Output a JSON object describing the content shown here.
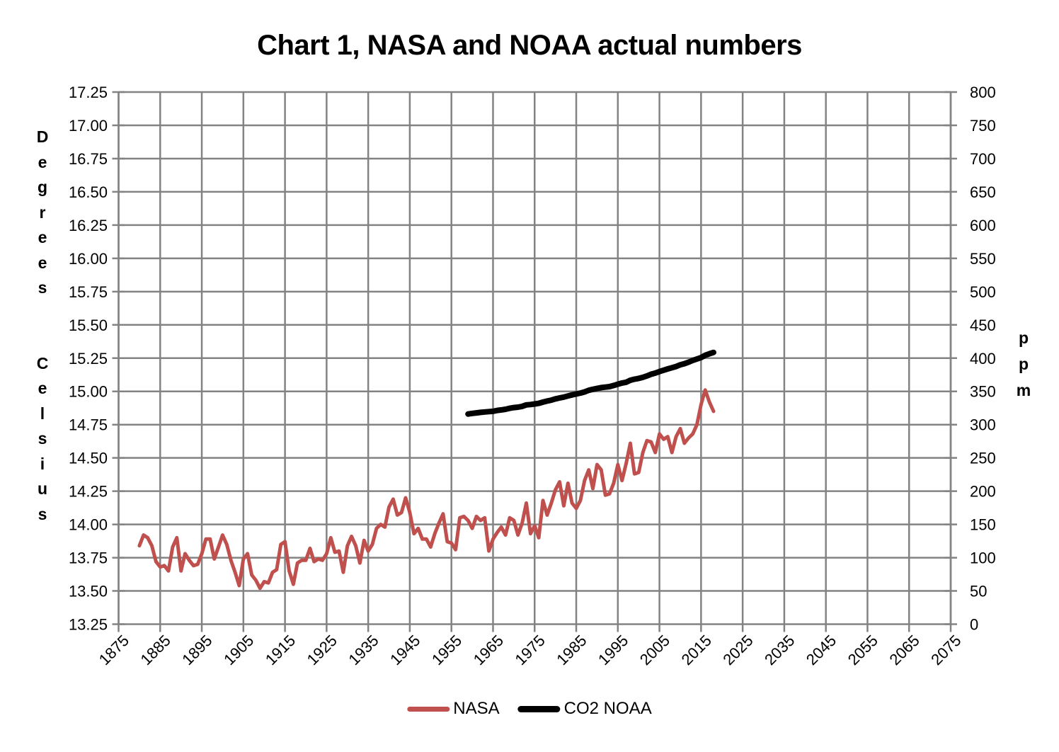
{
  "chart_data": {
    "type": "line",
    "title": "Chart 1, NASA and NOAA actual numbers",
    "grid": true,
    "grid_color": "#838383",
    "text_color": "#000000",
    "legend_position": "bottom",
    "x_axis": {
      "min": 1875,
      "max": 2075,
      "tick_step": 10,
      "ticks": [
        1875,
        1885,
        1895,
        1905,
        1915,
        1925,
        1935,
        1945,
        1955,
        1965,
        1975,
        1985,
        1995,
        2005,
        2015,
        2025,
        2035,
        2045,
        2055,
        2065,
        2075
      ]
    },
    "y_left": {
      "label": "Degrees Celsius",
      "min": 13.25,
      "max": 17.25,
      "tick_step": 0.25,
      "decimals": 2
    },
    "y_right": {
      "label": "ppm",
      "min": 0,
      "max": 800,
      "tick_step": 50,
      "decimals": 0
    },
    "series": [
      {
        "name": "NASA",
        "color": "#C0504D",
        "axis": "left",
        "line_width": 5,
        "start_x": 1880,
        "x_interval": 1,
        "values": [
          13.84,
          13.92,
          13.9,
          13.84,
          13.72,
          13.68,
          13.69,
          13.65,
          13.83,
          13.9,
          13.65,
          13.78,
          13.73,
          13.69,
          13.7,
          13.78,
          13.89,
          13.89,
          13.74,
          13.83,
          13.92,
          13.85,
          13.73,
          13.64,
          13.54,
          13.74,
          13.78,
          13.62,
          13.58,
          13.52,
          13.57,
          13.56,
          13.64,
          13.66,
          13.85,
          13.87,
          13.65,
          13.55,
          13.71,
          13.73,
          13.73,
          13.82,
          13.72,
          13.74,
          13.73,
          13.78,
          13.9,
          13.79,
          13.8,
          13.64,
          13.84,
          13.91,
          13.84,
          13.71,
          13.88,
          13.8,
          13.85,
          13.97,
          14.0,
          13.98,
          14.13,
          14.19,
          14.07,
          14.09,
          14.2,
          14.09,
          13.93,
          13.97,
          13.89,
          13.89,
          13.83,
          13.93,
          14.01,
          14.08,
          13.87,
          13.86,
          13.81,
          14.05,
          14.06,
          14.03,
          13.97,
          14.06,
          14.03,
          14.05,
          13.8,
          13.89,
          13.94,
          13.98,
          13.92,
          14.05,
          14.03,
          13.92,
          14.01,
          14.16,
          13.93,
          13.99,
          13.9,
          14.18,
          14.07,
          14.16,
          14.26,
          14.32,
          14.14,
          14.31,
          14.16,
          14.12,
          14.18,
          14.33,
          14.41,
          14.27,
          14.45,
          14.41,
          14.22,
          14.23,
          14.31,
          14.45,
          14.33,
          14.46,
          14.61,
          14.38,
          14.39,
          14.54,
          14.63,
          14.62,
          14.54,
          14.68,
          14.64,
          14.66,
          14.54,
          14.66,
          14.72,
          14.61,
          14.65,
          14.68,
          14.75,
          14.9,
          15.01,
          14.92,
          14.85
        ]
      },
      {
        "name": "CO2 NOAA",
        "color": "#000000",
        "axis": "right",
        "line_width": 8,
        "start_x": 1959,
        "x_interval": 1,
        "values": [
          315.97,
          316.91,
          317.64,
          318.45,
          318.99,
          319.62,
          320.04,
          321.38,
          322.16,
          323.04,
          324.62,
          325.68,
          326.32,
          327.45,
          329.68,
          330.18,
          331.11,
          332.04,
          333.83,
          335.4,
          336.84,
          338.75,
          340.11,
          341.45,
          343.05,
          344.65,
          346.12,
          347.42,
          349.19,
          351.57,
          353.12,
          354.39,
          355.61,
          356.45,
          357.1,
          358.83,
          360.82,
          362.61,
          363.73,
          366.7,
          368.38,
          369.55,
          371.14,
          373.28,
          375.8,
          377.52,
          379.8,
          381.9,
          383.79,
          385.6,
          387.43,
          389.9,
          391.65,
          393.85,
          396.52,
          398.65,
          400.83,
          404.24,
          406.55,
          408.52
        ]
      }
    ]
  }
}
